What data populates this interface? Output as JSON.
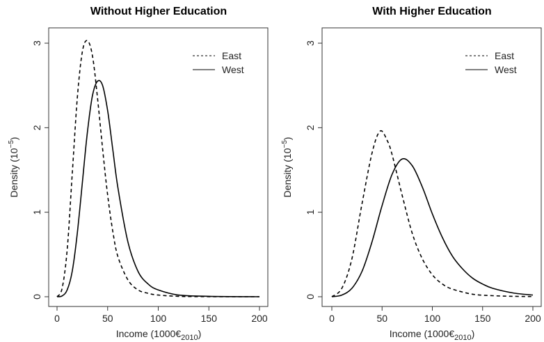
{
  "chart_data": [
    {
      "type": "line",
      "title": "Without Higher Education",
      "xlabel": "Income (1000€",
      "xlabel_sub": "2010",
      "xlabel_close": ")",
      "ylabel": "Density (10",
      "ylabel_sup": "−5",
      "ylabel_close": ")",
      "xlim": [
        0,
        200
      ],
      "ylim": [
        0,
        3
      ],
      "xticks": [
        "0",
        "50",
        "100",
        "150",
        "200"
      ],
      "yticks": [
        "0",
        "1",
        "2",
        "3"
      ],
      "legend_position": "top-right",
      "series": [
        {
          "name": "East",
          "style": "dashed",
          "x": [
            0,
            5,
            10,
            15,
            20,
            25,
            30,
            35,
            40,
            45,
            50,
            55,
            60,
            70,
            80,
            90,
            100,
            120,
            150,
            200
          ],
          "y": [
            0,
            0.1,
            0.55,
            1.45,
            2.35,
            2.9,
            3.03,
            2.85,
            2.35,
            1.75,
            1.2,
            0.78,
            0.48,
            0.2,
            0.08,
            0.04,
            0.02,
            0.005,
            0.001,
            0
          ]
        },
        {
          "name": "West",
          "style": "solid",
          "x": [
            0,
            5,
            10,
            15,
            20,
            25,
            30,
            35,
            40,
            45,
            50,
            55,
            60,
            70,
            80,
            90,
            100,
            120,
            150,
            200
          ],
          "y": [
            0,
            0.01,
            0.08,
            0.3,
            0.75,
            1.35,
            1.95,
            2.38,
            2.55,
            2.5,
            2.2,
            1.75,
            1.3,
            0.65,
            0.3,
            0.15,
            0.08,
            0.02,
            0.005,
            0
          ]
        }
      ]
    },
    {
      "type": "line",
      "title": "With Higher Education",
      "xlabel": "Income (1000€",
      "xlabel_sub": "2010",
      "xlabel_close": ")",
      "ylabel": "Density (10",
      "ylabel_sup": "−5",
      "ylabel_close": ")",
      "xlim": [
        0,
        200
      ],
      "ylim": [
        0,
        3
      ],
      "xticks": [
        "0",
        "50",
        "100",
        "150",
        "200"
      ],
      "yticks": [
        "0",
        "1",
        "2",
        "3"
      ],
      "legend_position": "top-right",
      "series": [
        {
          "name": "East",
          "style": "dashed",
          "x": [
            0,
            10,
            20,
            30,
            40,
            48,
            55,
            60,
            70,
            80,
            90,
            100,
            110,
            120,
            140,
            160,
            180,
            200
          ],
          "y": [
            0,
            0.1,
            0.45,
            1.1,
            1.7,
            1.96,
            1.85,
            1.68,
            1.2,
            0.75,
            0.45,
            0.26,
            0.15,
            0.09,
            0.03,
            0.012,
            0.005,
            0.002
          ]
        },
        {
          "name": "West",
          "style": "solid",
          "x": [
            0,
            10,
            20,
            30,
            40,
            50,
            60,
            70,
            80,
            90,
            100,
            110,
            120,
            130,
            140,
            150,
            160,
            180,
            200
          ],
          "y": [
            0,
            0.02,
            0.1,
            0.3,
            0.65,
            1.08,
            1.45,
            1.63,
            1.55,
            1.3,
            0.98,
            0.7,
            0.48,
            0.33,
            0.22,
            0.15,
            0.1,
            0.045,
            0.02
          ]
        }
      ]
    }
  ]
}
